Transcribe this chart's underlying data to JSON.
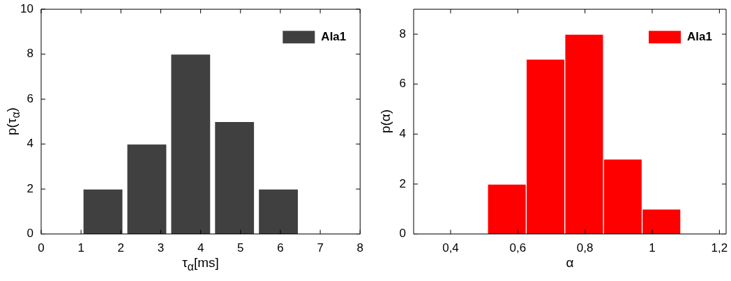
{
  "chart_data": [
    {
      "type": "histogram",
      "xlabel": "τ$_{α}$[ms]",
      "ylabel": "p(τ$_{α}$)",
      "bins": [
        1,
        2.1,
        3.2,
        4.3,
        5.4,
        6.5
      ],
      "series": [
        {
          "name": "Ala1",
          "color": "#404040",
          "values": [
            2,
            4,
            8,
            5,
            2
          ]
        }
      ],
      "xlim": [
        0,
        8
      ],
      "xticks": [
        0,
        1,
        2,
        3,
        4,
        5,
        6,
        7,
        8
      ],
      "ylim": [
        0,
        10
      ],
      "yticks": [
        0,
        2,
        4,
        6,
        8,
        10
      ],
      "legend": "top right"
    },
    {
      "type": "histogram",
      "xlabel": "α",
      "ylabel": "p(α)",
      "bins": [
        0.51,
        0.625,
        0.74,
        0.855,
        0.97,
        1.085
      ],
      "series": [
        {
          "name": "Ala1",
          "color": "#ff0000",
          "values": [
            2,
            7,
            8,
            3,
            1
          ]
        }
      ],
      "xlim": [
        0.29,
        1.22
      ],
      "xticks": [
        {
          "value": 0.4,
          "label": "0,4"
        },
        {
          "value": 0.6,
          "label": "0,6"
        },
        {
          "value": 0.8,
          "label": "0,8"
        },
        {
          "value": 1,
          "label": "1"
        },
        {
          "value": 1.2,
          "label": "1,2"
        }
      ],
      "ylim": [
        0,
        9
      ],
      "yticks": [
        0,
        2,
        4,
        6,
        8
      ],
      "legend": "top right"
    }
  ]
}
